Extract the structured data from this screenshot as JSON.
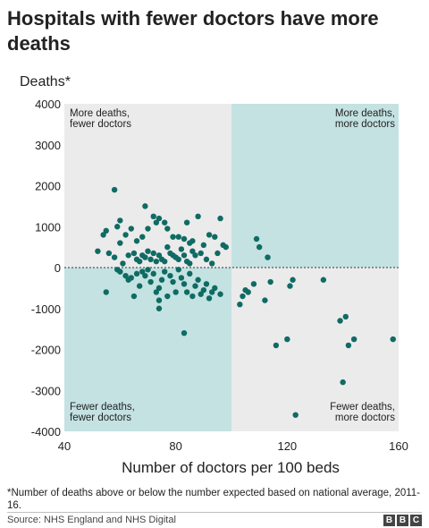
{
  "title": "Hospitals with fewer doctors have more deaths",
  "footnote": "*Number of deaths above or below the number expected based on national average, 2011-16.",
  "source": "Source: NHS England and NHS Digital",
  "logo": "BBC",
  "colors": {
    "teal_quadrant": "#c4e2e2",
    "grey_quadrant": "#ebebeb",
    "point": "#0f6b63",
    "text": "#222222"
  },
  "chart_data": {
    "type": "scatter",
    "xlabel": "Number of doctors per 100 beds",
    "ylabel": "Deaths*",
    "xlim": [
      40,
      160
    ],
    "ylim": [
      -4000,
      4000
    ],
    "xticks": [
      "40",
      "80",
      "120",
      "160"
    ],
    "yticks": [
      "4000",
      "3000",
      "2000",
      "1000",
      "0",
      "-1000",
      "-2000",
      "-3000",
      "-4000"
    ],
    "divider_x": 100,
    "quadrant_labels": {
      "top_left": [
        "More deaths,",
        "fewer doctors"
      ],
      "top_right": [
        "More deaths,",
        "more doctors"
      ],
      "bottom_left": [
        "Fewer deaths,",
        "fewer doctors"
      ],
      "bottom_right": [
        "Fewer deaths,",
        "more doctors"
      ]
    },
    "points": [
      [
        58,
        1900
      ],
      [
        69,
        1500
      ],
      [
        72,
        1250
      ],
      [
        74,
        1200
      ],
      [
        73,
        1100
      ],
      [
        76,
        1100
      ],
      [
        88,
        1250
      ],
      [
        96,
        1200
      ],
      [
        84,
        1100
      ],
      [
        55,
        900
      ],
      [
        59,
        1000
      ],
      [
        60,
        1150
      ],
      [
        62,
        800
      ],
      [
        64,
        950
      ],
      [
        66,
        650
      ],
      [
        68,
        750
      ],
      [
        70,
        950
      ],
      [
        77,
        950
      ],
      [
        79,
        750
      ],
      [
        81,
        750
      ],
      [
        83,
        700
      ],
      [
        85,
        600
      ],
      [
        86,
        650
      ],
      [
        90,
        550
      ],
      [
        92,
        800
      ],
      [
        94,
        750
      ],
      [
        97,
        550
      ],
      [
        52,
        400
      ],
      [
        54,
        800
      ],
      [
        56,
        350
      ],
      [
        58,
        250
      ],
      [
        60,
        600
      ],
      [
        61,
        100
      ],
      [
        63,
        300
      ],
      [
        65,
        350
      ],
      [
        66,
        200
      ],
      [
        67,
        150
      ],
      [
        68,
        300
      ],
      [
        69,
        250
      ],
      [
        70,
        400
      ],
      [
        71,
        200
      ],
      [
        72,
        350
      ],
      [
        73,
        150
      ],
      [
        74,
        300
      ],
      [
        75,
        200
      ],
      [
        76,
        150
      ],
      [
        77,
        500
      ],
      [
        78,
        350
      ],
      [
        79,
        300
      ],
      [
        80,
        250
      ],
      [
        81,
        200
      ],
      [
        82,
        450
      ],
      [
        83,
        300
      ],
      [
        84,
        150
      ],
      [
        85,
        100
      ],
      [
        86,
        400
      ],
      [
        87,
        300
      ],
      [
        89,
        350
      ],
      [
        91,
        200
      ],
      [
        93,
        100
      ],
      [
        95,
        350
      ],
      [
        98,
        500
      ],
      [
        55,
        -600
      ],
      [
        59,
        -50
      ],
      [
        60,
        -100
      ],
      [
        62,
        -200
      ],
      [
        63,
        -300
      ],
      [
        65,
        -700
      ],
      [
        66,
        -150
      ],
      [
        67,
        -450
      ],
      [
        68,
        -100
      ],
      [
        69,
        -200
      ],
      [
        70,
        -50
      ],
      [
        71,
        -350
      ],
      [
        72,
        -150
      ],
      [
        73,
        -600
      ],
      [
        74,
        -500
      ],
      [
        75,
        -300
      ],
      [
        76,
        -100
      ],
      [
        78,
        -200
      ],
      [
        79,
        -350
      ],
      [
        80,
        -600
      ],
      [
        81,
        -50
      ],
      [
        82,
        -250
      ],
      [
        83,
        -400
      ],
      [
        84,
        -600
      ],
      [
        85,
        -150
      ],
      [
        86,
        -700
      ],
      [
        87,
        -450
      ],
      [
        88,
        -300
      ],
      [
        89,
        -650
      ],
      [
        90,
        -550
      ],
      [
        91,
        -400
      ],
      [
        92,
        -750
      ],
      [
        93,
        -600
      ],
      [
        94,
        -500
      ],
      [
        96,
        -650
      ],
      [
        74,
        -1000
      ],
      [
        74,
        -800
      ],
      [
        83,
        -1600
      ],
      [
        64,
        -250
      ],
      [
        77,
        -700
      ],
      [
        109,
        700
      ],
      [
        110,
        500
      ],
      [
        113,
        250
      ],
      [
        104,
        -700
      ],
      [
        103,
        -900
      ],
      [
        105,
        -550
      ],
      [
        106,
        -600
      ],
      [
        108,
        -400
      ],
      [
        112,
        -800
      ],
      [
        114,
        -350
      ],
      [
        121,
        -450
      ],
      [
        122,
        -300
      ],
      [
        133,
        -300
      ],
      [
        120,
        -1750
      ],
      [
        116,
        -1900
      ],
      [
        139,
        -1300
      ],
      [
        141,
        -1200
      ],
      [
        142,
        -1900
      ],
      [
        144,
        -1750
      ],
      [
        158,
        -1750
      ],
      [
        140,
        -2800
      ],
      [
        123,
        -3600
      ]
    ]
  }
}
